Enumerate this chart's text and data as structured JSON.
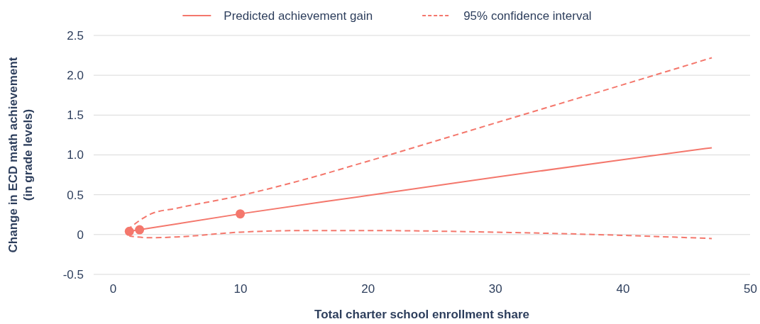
{
  "chart_data": {
    "type": "line",
    "xlabel": "Total charter school enrollment share",
    "ylabel": "Change in ECD math achievement\n(in grade levels)",
    "xlim": [
      -1.5,
      50
    ],
    "xticks": [
      0,
      10,
      20,
      30,
      40,
      50
    ],
    "ylim": [
      -0.5,
      2.5
    ],
    "yticks": [
      {
        "value": -0.5,
        "label": "-0.5"
      },
      0,
      0.5,
      {
        "value": 1,
        "label": "1.0"
      },
      1.5,
      {
        "value": 2,
        "label": "2.0"
      },
      2.5
    ],
    "grid": "y",
    "legend": "top",
    "series": [
      {
        "name": "Predicted achievement gain",
        "color": "#f4776c",
        "line_style": "solid",
        "marker": "none",
        "x": [
          1.3,
          10,
          20,
          30,
          40,
          47
        ],
        "values": [
          0.04,
          0.26,
          0.49,
          0.72,
          0.94,
          1.09
        ]
      },
      {
        "name": "95% confidence interval",
        "color": "#f4776c",
        "line_style": "dashed",
        "marker": "none",
        "x": [
          1.3,
          3,
          5,
          10,
          15,
          20,
          30,
          40,
          47
        ],
        "values": [
          0.08,
          0.26,
          0.33,
          0.49,
          0.69,
          0.92,
          1.4,
          1.88,
          2.22
        ]
      },
      {
        "color": "#f4776c",
        "line_style": "dashed",
        "marker": "none",
        "x": [
          1.3,
          3,
          5,
          10,
          15,
          20,
          30,
          40,
          47
        ],
        "values": [
          -0.02,
          -0.04,
          -0.03,
          0.03,
          0.05,
          0.05,
          0.03,
          -0.01,
          -0.05
        ]
      },
      {
        "type": "scatter",
        "color": "#f4776c",
        "marker": "circle",
        "x": [
          1.3,
          2.1,
          10
        ],
        "values": [
          0.04,
          0.06,
          0.26
        ]
      }
    ]
  }
}
